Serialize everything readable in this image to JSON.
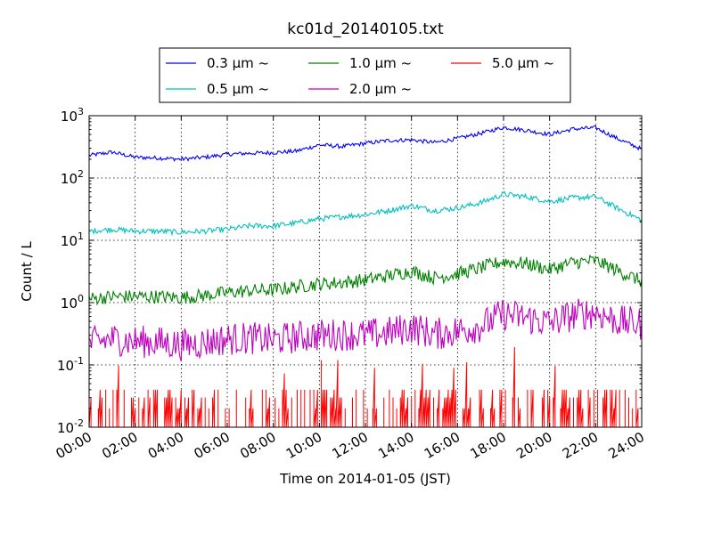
{
  "chart_data": {
    "type": "line",
    "title": "kc01d_20140105.txt",
    "xlabel": "Time on 2014-01-05 (JST)",
    "ylabel": "Count / L",
    "y_scale": "log",
    "ylim": [
      0.01,
      1000
    ],
    "xlim": [
      "00:00",
      "24:00"
    ],
    "x_tick_labels": [
      "00:00",
      "02:00",
      "04:00",
      "06:00",
      "08:00",
      "10:00",
      "12:00",
      "14:00",
      "16:00",
      "18:00",
      "20:00",
      "22:00",
      "24:00"
    ],
    "y_ticks": [
      {
        "value": 0.01,
        "base": "10",
        "exp": "-2"
      },
      {
        "value": 0.1,
        "base": "10",
        "exp": "-1"
      },
      {
        "value": 1,
        "base": "10",
        "exp": "0"
      },
      {
        "value": 10,
        "base": "10",
        "exp": "1"
      },
      {
        "value": 100,
        "base": "10",
        "exp": "2"
      },
      {
        "value": 1000,
        "base": "10",
        "exp": "3"
      }
    ],
    "grid": true,
    "legend_position": "top, outside plot",
    "series": [
      {
        "name": "0.3 μm ~",
        "color": "#0000ff",
        "noise": 0.015,
        "x": [
          "00:00",
          "01:00",
          "02:00",
          "03:00",
          "04:00",
          "05:00",
          "06:00",
          "07:00",
          "08:00",
          "09:00",
          "10:00",
          "11:00",
          "12:00",
          "13:00",
          "14:00",
          "15:00",
          "16:00",
          "17:00",
          "18:00",
          "19:00",
          "20:00",
          "21:00",
          "22:00",
          "23:00",
          "24:00"
        ],
        "y": [
          230,
          260,
          215,
          210,
          200,
          215,
          240,
          250,
          255,
          270,
          340,
          320,
          360,
          400,
          410,
          370,
          430,
          520,
          650,
          580,
          500,
          610,
          640,
          420,
          290
        ]
      },
      {
        "name": "0.5 μm ~",
        "color": "#00bfbf",
        "noise": 0.02,
        "x": [
          "00:00",
          "01:00",
          "02:00",
          "03:00",
          "04:00",
          "05:00",
          "06:00",
          "07:00",
          "08:00",
          "09:00",
          "10:00",
          "11:00",
          "12:00",
          "13:00",
          "14:00",
          "15:00",
          "16:00",
          "17:00",
          "18:00",
          "19:00",
          "20:00",
          "21:00",
          "22:00",
          "23:00",
          "24:00"
        ],
        "y": [
          14,
          15,
          14,
          14,
          13.5,
          14,
          15,
          17,
          17,
          19,
          22,
          24,
          26,
          30,
          36,
          30,
          33,
          40,
          55,
          50,
          42,
          48,
          50,
          32,
          21
        ]
      },
      {
        "name": "1.0 μm ~",
        "color": "#008000",
        "noise": 0.05,
        "x": [
          "00:00",
          "01:00",
          "02:00",
          "03:00",
          "04:00",
          "05:00",
          "06:00",
          "07:00",
          "08:00",
          "09:00",
          "10:00",
          "11:00",
          "12:00",
          "13:00",
          "14:00",
          "15:00",
          "16:00",
          "17:00",
          "18:00",
          "19:00",
          "20:00",
          "21:00",
          "22:00",
          "23:00",
          "24:00"
        ],
        "y": [
          1.15,
          1.25,
          1.25,
          1.25,
          1.2,
          1.3,
          1.45,
          1.55,
          1.6,
          1.8,
          2.0,
          2.1,
          2.3,
          2.7,
          3.2,
          2.5,
          2.9,
          3.6,
          4.6,
          4.2,
          3.4,
          4.4,
          4.7,
          3.2,
          2.2
        ]
      },
      {
        "name": "2.0 μm ~",
        "color": "#bf00bf",
        "noise": 0.12,
        "x": [
          "00:00",
          "01:00",
          "02:00",
          "03:00",
          "04:00",
          "05:00",
          "06:00",
          "07:00",
          "08:00",
          "09:00",
          "10:00",
          "11:00",
          "12:00",
          "13:00",
          "14:00",
          "15:00",
          "16:00",
          "17:00",
          "18:00",
          "19:00",
          "20:00",
          "21:00",
          "22:00",
          "23:00",
          "24:00"
        ],
        "y": [
          0.22,
          0.26,
          0.24,
          0.23,
          0.21,
          0.23,
          0.26,
          0.27,
          0.25,
          0.28,
          0.3,
          0.31,
          0.3,
          0.33,
          0.4,
          0.31,
          0.35,
          0.42,
          0.65,
          0.57,
          0.47,
          0.63,
          0.7,
          0.5,
          0.45
        ]
      },
      {
        "name": "5.0 μm ~",
        "color": "#ff0000",
        "noise": 0,
        "x": [
          "00:00",
          "01:00",
          "02:00",
          "03:00",
          "04:00",
          "05:00",
          "06:00",
          "07:00",
          "08:00",
          "09:00",
          "10:00",
          "11:00",
          "12:00",
          "13:00",
          "14:00",
          "15:00",
          "16:00",
          "17:00",
          "18:00",
          "19:00",
          "20:00",
          "21:00",
          "22:00",
          "23:00",
          "24:00"
        ],
        "y": [
          0.03,
          0.03,
          0.04,
          0.03,
          0.03,
          0.03,
          0.02,
          0.03,
          0.02,
          0.03,
          0.04,
          0.04,
          0.03,
          0.03,
          0.04,
          0.03,
          0.03,
          0.05,
          0.1,
          0.04,
          0.03,
          0.04,
          0.1,
          0.03,
          0.03
        ]
      }
    ]
  }
}
